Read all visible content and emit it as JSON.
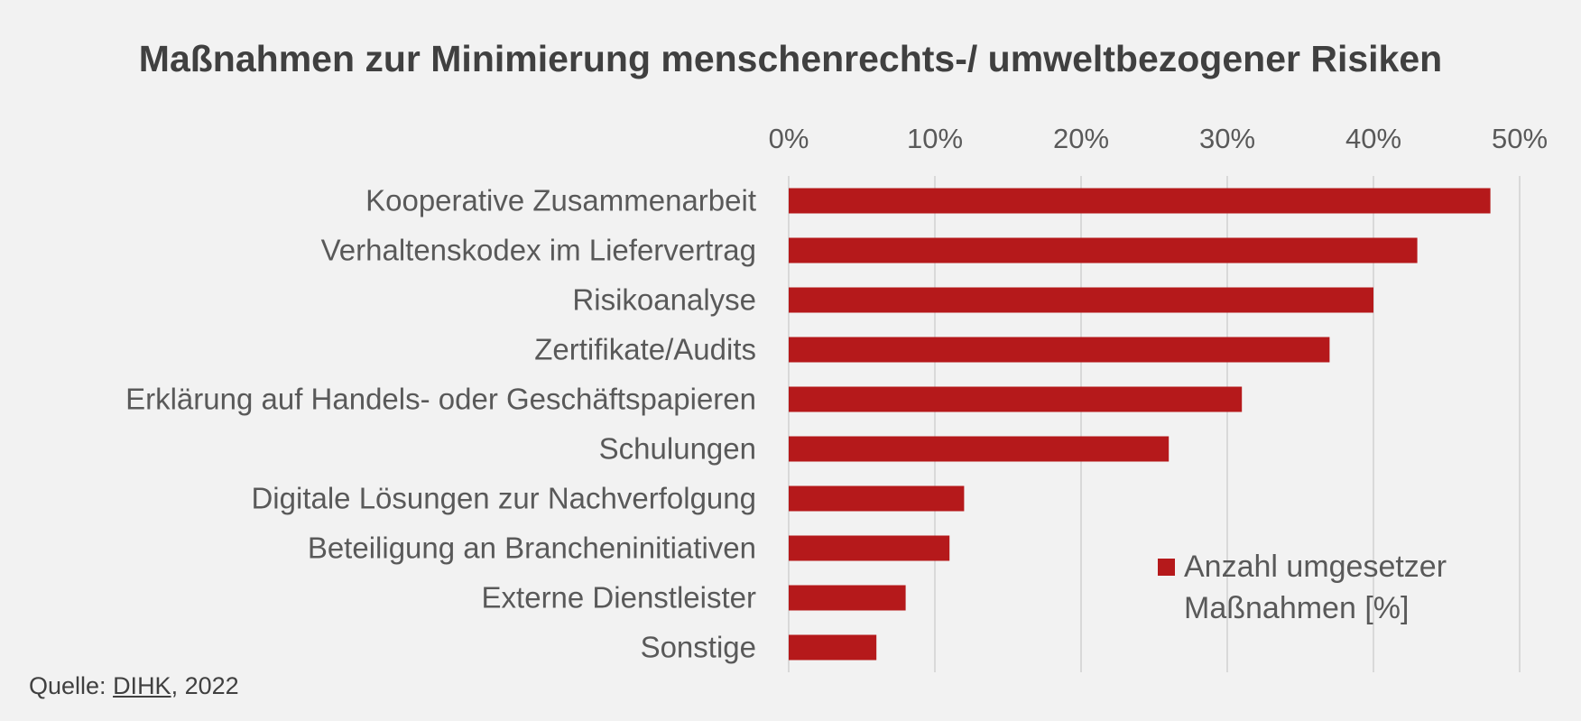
{
  "chart_data": {
    "type": "bar",
    "orientation": "horizontal",
    "title": "Maßnahmen zur Minimierung menschenrechts-/ umweltbezogener Risiken",
    "categories": [
      "Kooperative Zusammenarbeit",
      "Verhaltenskodex im Liefervertrag",
      "Risikoanalyse",
      "Zertifikate/Audits",
      "Erklärung auf Handels- oder Geschäftspapieren",
      "Schulungen",
      "Digitale Lösungen zur Nachverfolgung",
      "Beteiligung an Brancheninitiativen",
      "Externe Dienstleister",
      "Sonstige"
    ],
    "series": [
      {
        "name": "Anzahl umgesetzer Maßnahmen [%]",
        "values": [
          48,
          43,
          40,
          37,
          31,
          26,
          12,
          11,
          8,
          6
        ]
      }
    ],
    "xlim": [
      0,
      50
    ],
    "xticks": [
      0,
      10,
      20,
      30,
      40,
      50
    ],
    "tick_format": "%",
    "axis_position": "top",
    "grid": true,
    "legend_position": "bottom-right",
    "bar_color": "#b5191b"
  },
  "source": {
    "prefix": "Quelle: ",
    "link_text": "DIHK",
    "suffix": ", 2022"
  }
}
